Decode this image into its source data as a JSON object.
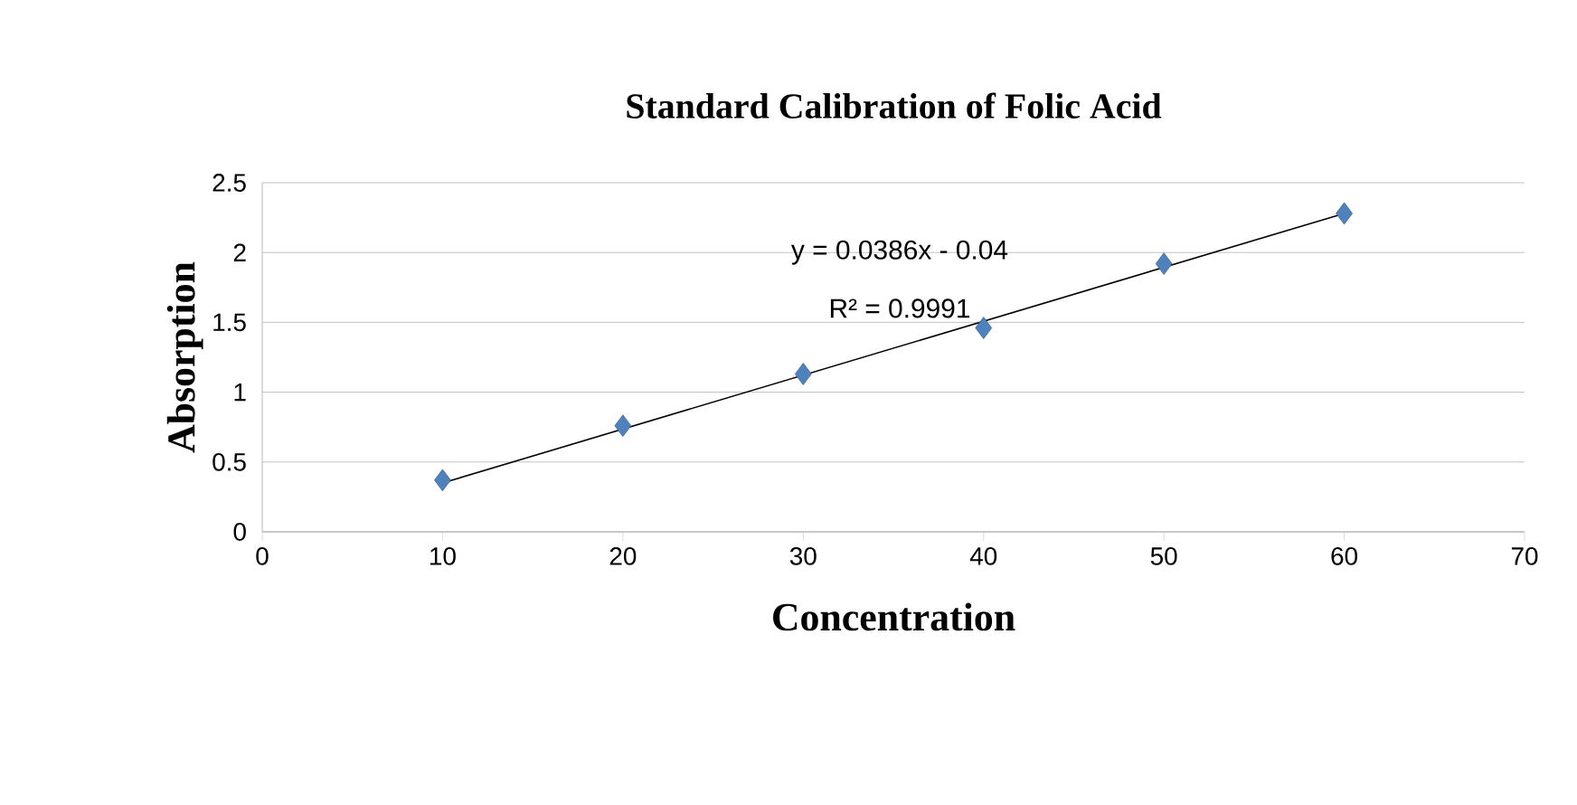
{
  "chart_data": {
    "type": "scatter",
    "title": "Standard Calibration of Folic Acid",
    "xlabel": "Concentration",
    "ylabel": "Absorption",
    "annotations": [
      "y = 0.0386x - 0.04",
      "R² = 0.9991"
    ],
    "x": [
      10,
      20,
      30,
      40,
      50,
      60
    ],
    "series": [
      {
        "type": "scatter",
        "color": "#4f81bd",
        "marker": "diamond",
        "values": [
          0.37,
          0.76,
          1.13,
          1.46,
          1.92,
          2.28
        ]
      },
      {
        "type": "line",
        "color": "#000000",
        "marker": "none",
        "line_style": "solid",
        "x": [
          10,
          60
        ],
        "values": [
          0.35,
          2.28
        ]
      }
    ],
    "xlim": [
      0,
      70
    ],
    "xticks": [
      0,
      10,
      20,
      30,
      40,
      50,
      60,
      70
    ],
    "ylim": [
      0,
      2.5
    ],
    "yticks": [
      0,
      0.5,
      1,
      1.5,
      2,
      2.5
    ],
    "grid": "y"
  }
}
